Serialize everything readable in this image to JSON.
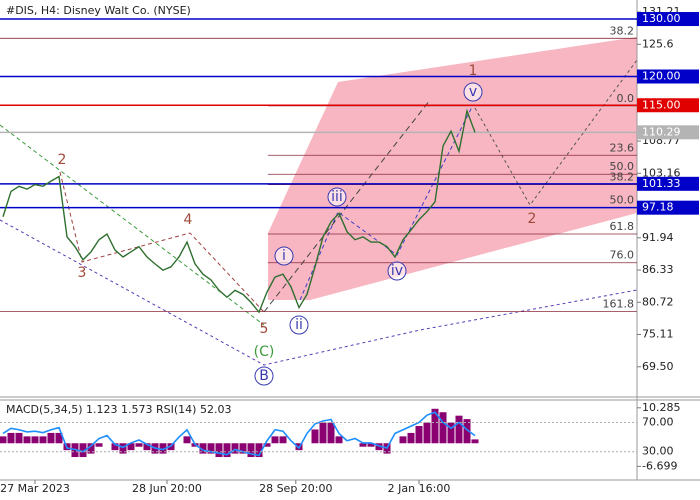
{
  "chart_data": {
    "type": "line",
    "title": "#DIS, H4:  Disney Walt Co. (NYSE)",
    "x": [
      0,
      1,
      2,
      3,
      4,
      5,
      6,
      7,
      8,
      9,
      10,
      11,
      12,
      13,
      14,
      15,
      16,
      17,
      18,
      19,
      20,
      21,
      22,
      23,
      24,
      25,
      26,
      27,
      28,
      29,
      30,
      31,
      32,
      33,
      34,
      35,
      36,
      37,
      38,
      39,
      40,
      41,
      42,
      43,
      44,
      45,
      46,
      47,
      48,
      49,
      50,
      51,
      52,
      53,
      54,
      55,
      56,
      57,
      58,
      59
    ],
    "values": [
      95.6,
      100.0,
      100.9,
      100.4,
      101.2,
      100.9,
      101.8,
      102.6,
      92.1,
      90.4,
      88.1,
      89.5,
      91.6,
      92.6,
      89.8,
      88.6,
      89.5,
      90.4,
      88.6,
      87.4,
      86.3,
      86.9,
      88.6,
      91.2,
      87.4,
      85.6,
      84.6,
      82.8,
      81.6,
      82.8,
      82.1,
      80.7,
      79.0,
      82.5,
      85.1,
      85.6,
      83.4,
      79.8,
      82.1,
      86.9,
      92.1,
      94.7,
      96.2,
      93.0,
      91.6,
      92.1,
      91.2,
      91.2,
      90.4,
      88.6,
      91.6,
      93.3,
      95.1,
      96.5,
      98.2,
      107.9,
      110.5,
      107.0,
      114.0,
      110.29
    ],
    "color": "#2f6f2f",
    "xlim": [
      -0.375,
      79.25
    ],
    "xticks": [
      {
        "value": 4,
        "label": "27 Mar 2023"
      },
      {
        "value": 20.5,
        "label": "28 Jun 20:00"
      },
      {
        "value": 36.6,
        "label": "28 Sep 20:00"
      },
      {
        "value": 52,
        "label": "2 Jan 16:00"
      }
    ],
    "ylim": [
      64.24,
      132.79
    ],
    "yticks": [
      131.21,
      125.6,
      {
        "value": 108.77,
        "label": "108.77"
      },
      103.16,
      91.94,
      86.33,
      80.72,
      75.11,
      {
        "value": 69.5,
        "label": "69.50"
      }
    ],
    "price_levels": [
      {
        "value": 130,
        "label": "130.00",
        "color": "#0000c8"
      },
      {
        "value": 120,
        "label": "120.00",
        "color": "#0000c8"
      },
      {
        "value": 115,
        "label": "115.00",
        "color": "#e00000"
      },
      {
        "value": 110.29,
        "label": "110.29",
        "color": "#b4b4b4"
      },
      {
        "value": 101.33,
        "label": "101.33",
        "color": "#0000c8"
      },
      {
        "value": 97.18,
        "label": "97.18",
        "color": "#0000c8"
      }
    ],
    "fib_levels": [
      {
        "value": 126.65,
        "label": "38.2",
        "x_from": -0.375
      },
      {
        "value": 114.9,
        "label": "0.0",
        "x_from": 33.1
      },
      {
        "value": 106.3,
        "label": "23.6",
        "x_from": 33.1
      },
      {
        "value": 103.0,
        "label": "50.0",
        "x_from": 33.1
      },
      {
        "value": 101.2,
        "label": "38.2",
        "x_from": 33.1
      },
      {
        "value": 97.2,
        "label": "50.0",
        "x_from": 33.1
      },
      {
        "value": 92.6,
        "label": "61.8",
        "x_from": 33.1
      },
      {
        "value": 87.6,
        "label": "76.0",
        "x_from": 33.1
      },
      {
        "value": 79.1,
        "label": "161.8",
        "x_from": -0.375
      }
    ],
    "waves": [
      "2",
      "3",
      "4",
      "5",
      "(C)",
      "B",
      "i",
      "ii",
      "iii",
      "iv",
      "v",
      "1",
      "2"
    ],
    "indicator": {
      "title": "MACD(5,34,5) 1.123 1.573 RSI(14) 52.03",
      "macd": [
        2,
        3,
        3,
        2,
        2,
        2,
        3,
        3,
        -2,
        -4,
        -4,
        -3,
        -1,
        0,
        -2,
        -3,
        -2,
        -1,
        -2,
        -3,
        -3,
        -2,
        0,
        2,
        -1,
        -3,
        -3,
        -4,
        -4,
        -3,
        -3,
        -4,
        -4,
        -1,
        2,
        2,
        0,
        -2,
        0,
        4,
        6,
        6,
        2,
        0,
        0,
        -1,
        -1,
        -2,
        -3,
        0,
        2,
        3,
        5,
        6,
        10,
        9,
        6,
        8,
        7,
        1.123
      ],
      "macd_color": "#8b0070",
      "ylim": [
        -10.66,
        12.55
      ],
      "yticks": [
        {
          "value": 10.285,
          "label": "10.285"
        },
        {
          "value": -6.699,
          "label": "-6.699"
        }
      ],
      "rsi": [
        55,
        62,
        60,
        57,
        58,
        56,
        60,
        63,
        35,
        33,
        30,
        38,
        48,
        52,
        40,
        36,
        42,
        46,
        40,
        35,
        33,
        38,
        50,
        60,
        40,
        32,
        30,
        28,
        26,
        33,
        30,
        27,
        25,
        45,
        60,
        58,
        45,
        35,
        55,
        68,
        72,
        74,
        55,
        45,
        48,
        42,
        42,
        38,
        35,
        55,
        60,
        65,
        70,
        80,
        84,
        70,
        62,
        70,
        60,
        52.03
      ],
      "rsi_color": "#1e8fff",
      "y2lim": [
        -8.7,
        100.7
      ],
      "y2ticks": [
        {
          "value": 70,
          "label": "70.00"
        },
        {
          "value": 30,
          "label": "30.00"
        }
      ]
    }
  }
}
